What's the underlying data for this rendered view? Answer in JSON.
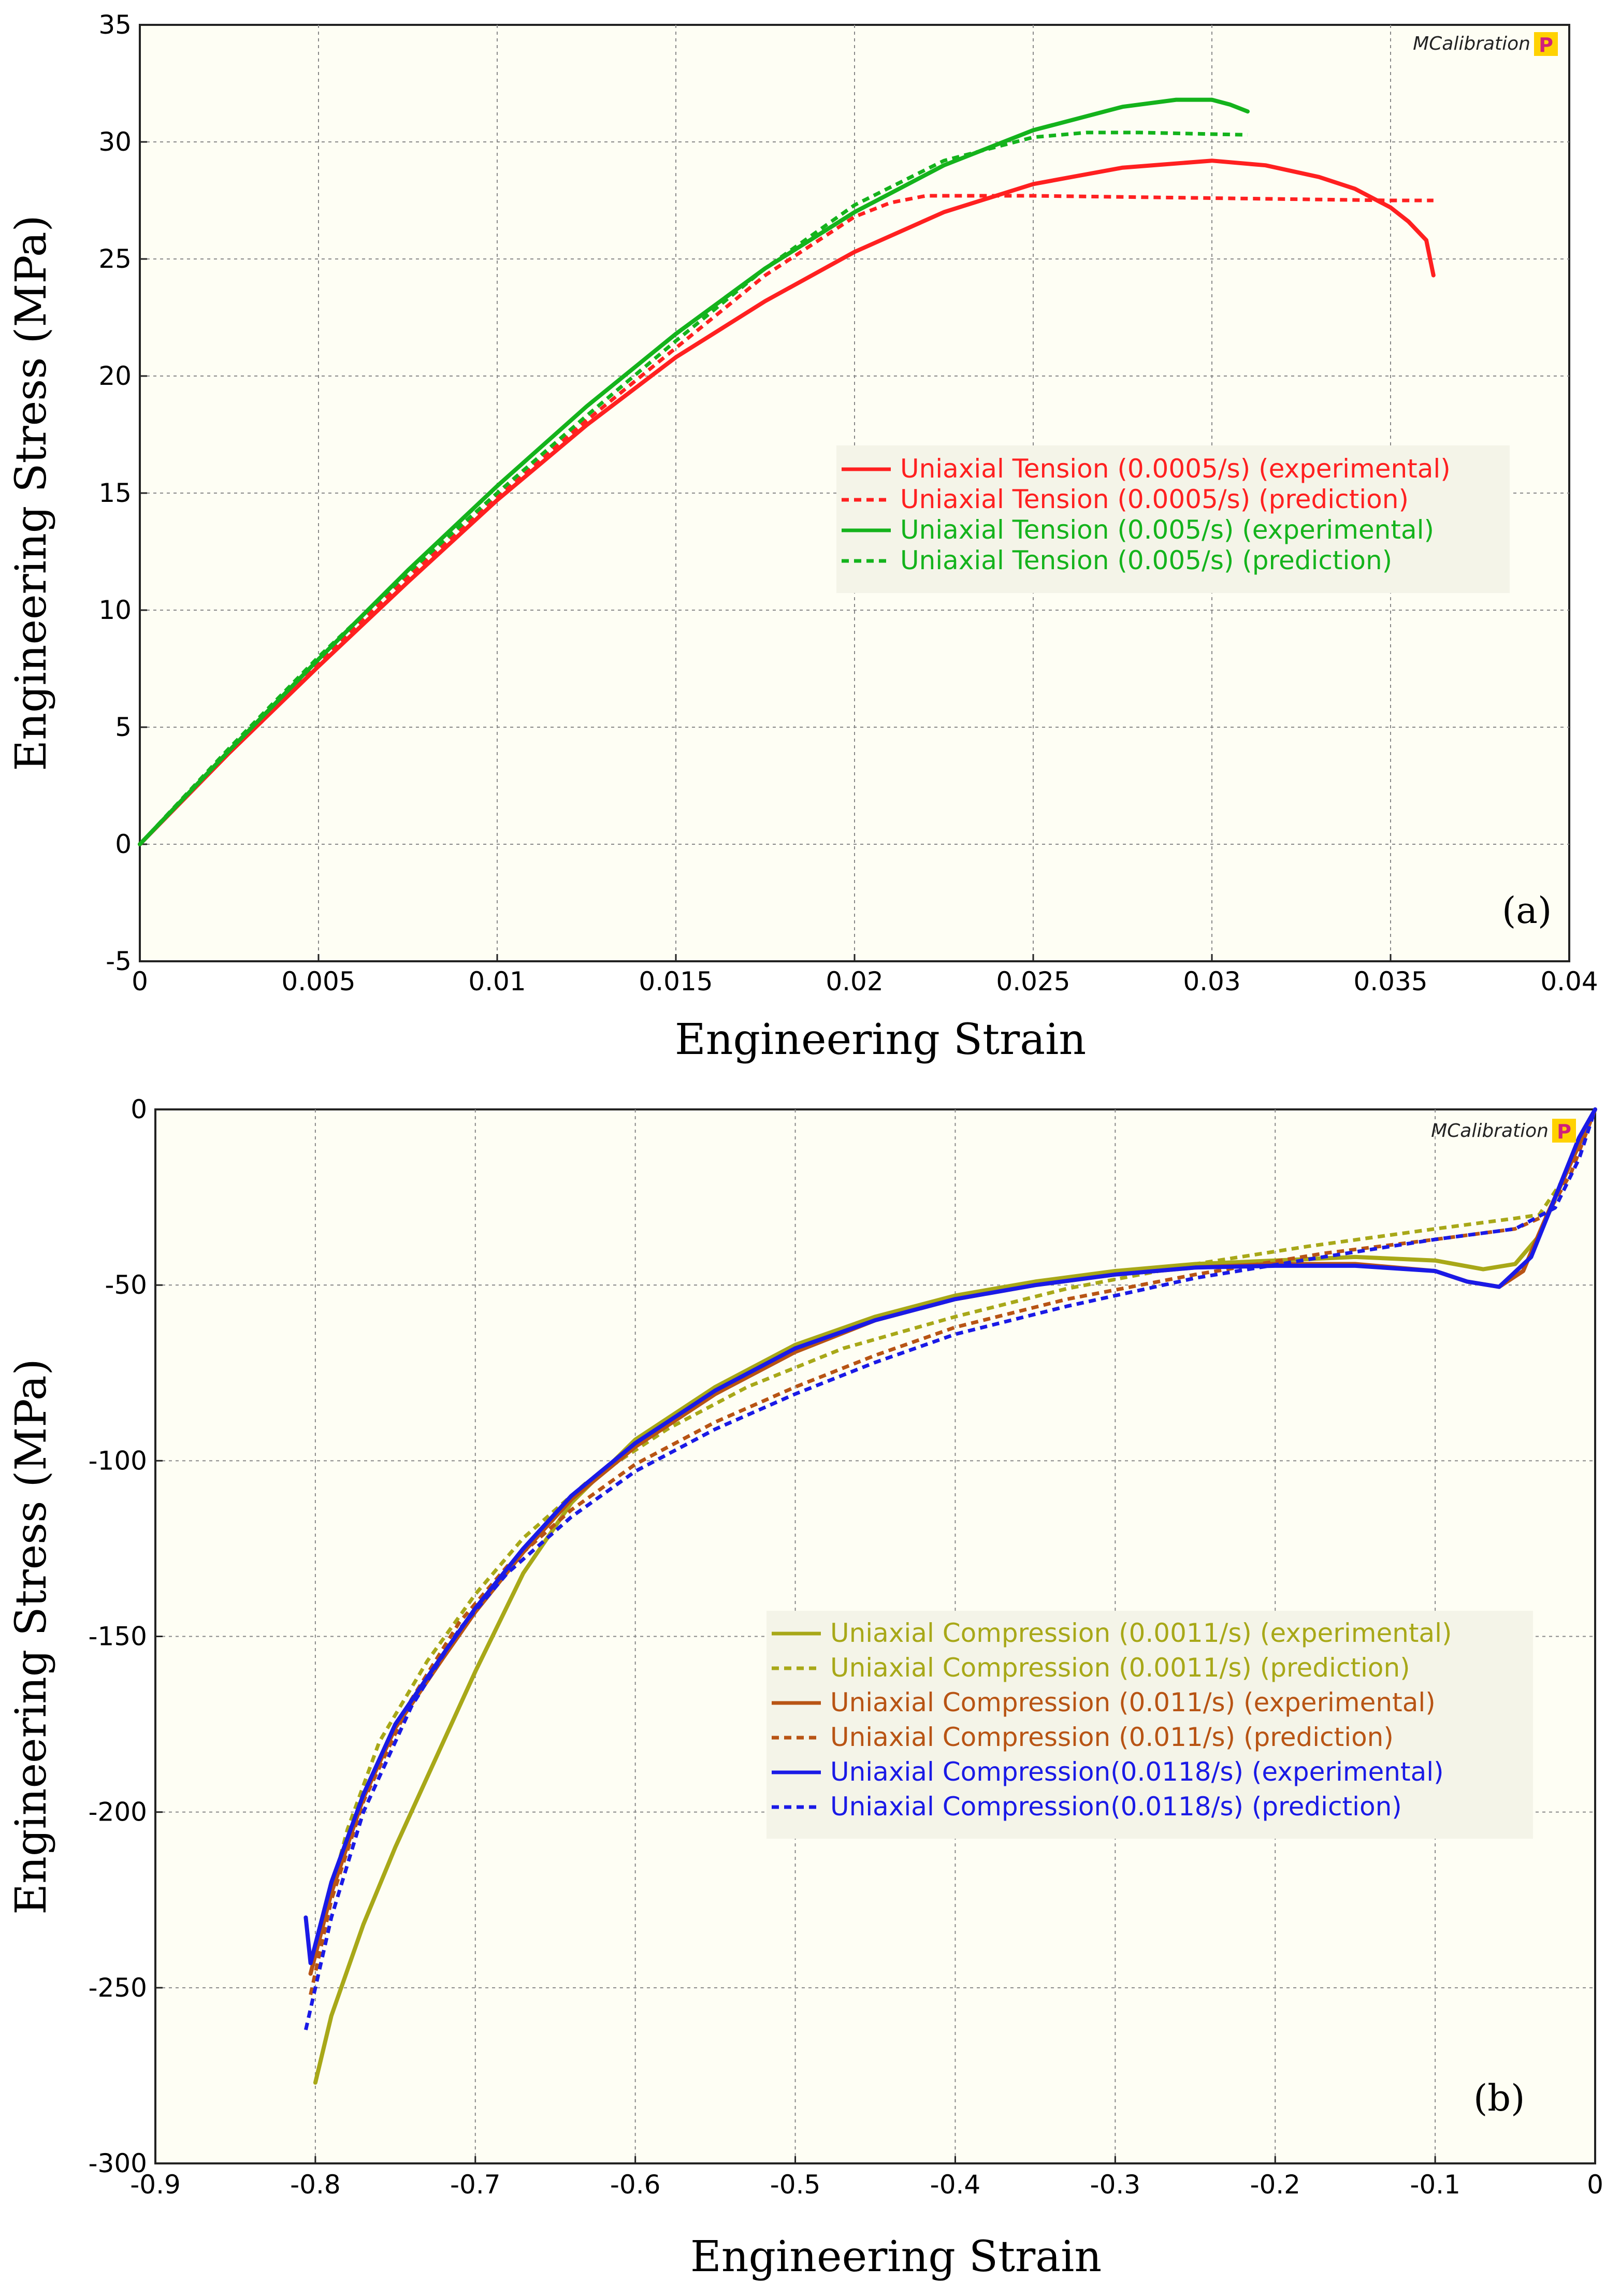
{
  "brand": {
    "name": "MCalibration",
    "badge": "P"
  },
  "chart_data": [
    {
      "type": "line",
      "panel_label": "(a)",
      "xlabel": "Engineering Strain",
      "ylabel": "Engineering Stress (MPa)",
      "xlim": [
        0,
        0.04
      ],
      "ylim": [
        -5,
        35
      ],
      "xticks": [
        0,
        0.005,
        0.01,
        0.015,
        0.02,
        0.025,
        0.03,
        0.035,
        0.04
      ],
      "xtick_labels": [
        "0",
        "0.005",
        "0.01",
        "0.015",
        "0.02",
        "0.025",
        "0.03",
        "0.035",
        "0.04"
      ],
      "yticks": [
        -5,
        0,
        5,
        10,
        15,
        20,
        25,
        30,
        35
      ],
      "ytick_labels": [
        "-5",
        "0",
        "5",
        "10",
        "15",
        "20",
        "25",
        "30",
        "35"
      ],
      "grid": true,
      "legend_position": "center-right",
      "series": [
        {
          "name": "Uniaxial Tension (0.0005/s) (experimental)",
          "color": "#ff2020",
          "style": "solid",
          "x": [
            0,
            0.0025,
            0.005,
            0.0075,
            0.01,
            0.0125,
            0.015,
            0.0175,
            0.02,
            0.0225,
            0.025,
            0.0275,
            0.03,
            0.0315,
            0.033,
            0.034,
            0.035,
            0.0355,
            0.036,
            0.0362
          ],
          "y": [
            0,
            3.9,
            7.6,
            11.2,
            14.7,
            17.9,
            20.8,
            23.2,
            25.3,
            27.0,
            28.2,
            28.9,
            29.2,
            29.0,
            28.5,
            28.0,
            27.2,
            26.6,
            25.8,
            24.3
          ]
        },
        {
          "name": "Uniaxial Tension (0.0005/s) (prediction)",
          "color": "#ff2020",
          "style": "dashed",
          "x": [
            0,
            0.0025,
            0.005,
            0.0075,
            0.01,
            0.0125,
            0.015,
            0.0175,
            0.02,
            0.021,
            0.022,
            0.025,
            0.03,
            0.035,
            0.0362
          ],
          "y": [
            0,
            4.0,
            7.8,
            11.4,
            14.8,
            18.1,
            21.2,
            24.3,
            26.8,
            27.4,
            27.7,
            27.7,
            27.6,
            27.5,
            27.5
          ]
        },
        {
          "name": "Uniaxial Tension (0.005/s) (experimental)",
          "color": "#14b31c",
          "style": "solid",
          "x": [
            0,
            0.0025,
            0.005,
            0.0075,
            0.01,
            0.0125,
            0.015,
            0.0175,
            0.02,
            0.0225,
            0.025,
            0.0275,
            0.029,
            0.03,
            0.0305,
            0.031
          ],
          "y": [
            0,
            4.0,
            7.9,
            11.7,
            15.3,
            18.7,
            21.8,
            24.6,
            27.0,
            29.0,
            30.5,
            31.5,
            31.8,
            31.8,
            31.6,
            31.3
          ]
        },
        {
          "name": "Uniaxial Tension (0.005/s) (prediction)",
          "color": "#14b31c",
          "style": "dashed",
          "x": [
            0,
            0.0025,
            0.005,
            0.0075,
            0.01,
            0.0125,
            0.015,
            0.0175,
            0.02,
            0.0225,
            0.025,
            0.0265,
            0.028,
            0.031
          ],
          "y": [
            0,
            4.1,
            8.0,
            11.6,
            15.0,
            18.3,
            21.5,
            24.6,
            27.3,
            29.2,
            30.2,
            30.4,
            30.4,
            30.3
          ]
        }
      ]
    },
    {
      "type": "line",
      "panel_label": "(b)",
      "xlabel": "Engineering Strain",
      "ylabel": "Engineering Stress (MPa)",
      "xlim": [
        -0.9,
        0
      ],
      "ylim": [
        -300,
        0
      ],
      "xticks": [
        -0.9,
        -0.8,
        -0.7,
        -0.6,
        -0.5,
        -0.4,
        -0.3,
        -0.2,
        -0.1,
        0
      ],
      "xtick_labels": [
        "-0.9",
        "-0.8",
        "-0.7",
        "-0.6",
        "-0.5",
        "-0.4",
        "-0.3",
        "-0.2",
        "-0.1",
        "0"
      ],
      "yticks": [
        -300,
        -250,
        -200,
        -150,
        -100,
        -50,
        0
      ],
      "ytick_labels": [
        "-300",
        "-250",
        "-200",
        "-150",
        "-100",
        "-50",
        "0"
      ],
      "grid": true,
      "legend_position": "center-right",
      "series": [
        {
          "name": "Uniaxial Compression (0.0011/s) (experimental)",
          "color": "#a8a818",
          "style": "solid",
          "x": [
            -0.8,
            -0.79,
            -0.77,
            -0.75,
            -0.73,
            -0.7,
            -0.67,
            -0.64,
            -0.6,
            -0.55,
            -0.5,
            -0.45,
            -0.4,
            -0.35,
            -0.3,
            -0.25,
            -0.2,
            -0.15,
            -0.1,
            -0.07,
            -0.05,
            -0.035,
            -0.02,
            0
          ],
          "y": [
            -277,
            -258,
            -232,
            -210,
            -190,
            -160,
            -132,
            -112,
            -94,
            -79,
            -67,
            -59,
            -53,
            -49,
            -46,
            -44,
            -43,
            -42,
            -43,
            -45.5,
            -44,
            -36,
            -20,
            0
          ]
        },
        {
          "name": "Uniaxial Compression (0.0011/s) (prediction)",
          "color": "#a8a818",
          "style": "dashed",
          "x": [
            -0.8,
            -0.78,
            -0.76,
            -0.73,
            -0.7,
            -0.67,
            -0.63,
            -0.58,
            -0.53,
            -0.47,
            -0.4,
            -0.33,
            -0.25,
            -0.18,
            -0.1,
            -0.05,
            -0.035,
            -0.02,
            0
          ],
          "y": [
            -240,
            -205,
            -180,
            -157,
            -138,
            -122,
            -106,
            -91,
            -79,
            -68,
            -59,
            -51,
            -44,
            -39,
            -34,
            -31,
            -30,
            -20,
            0
          ]
        },
        {
          "name": "Uniaxial Compression (0.011/s) (experimental)",
          "color": "#b85414",
          "style": "solid",
          "x": [
            -0.803,
            -0.79,
            -0.77,
            -0.75,
            -0.72,
            -0.7,
            -0.67,
            -0.64,
            -0.6,
            -0.55,
            -0.5,
            -0.45,
            -0.4,
            -0.35,
            -0.3,
            -0.25,
            -0.2,
            -0.15,
            -0.1,
            -0.08,
            -0.06,
            -0.045,
            -0.03,
            -0.01,
            0
          ],
          "y": [
            -246,
            -223,
            -196,
            -176,
            -156,
            -143,
            -126,
            -111,
            -96,
            -81,
            -69,
            -60,
            -54,
            -50,
            -47,
            -45,
            -44,
            -44,
            -46,
            -49,
            -50.5,
            -46,
            -30,
            -10,
            0
          ]
        },
        {
          "name": "Uniaxial Compression (0.011/s) (prediction)",
          "color": "#b85414",
          "style": "dashed",
          "x": [
            -0.803,
            -0.79,
            -0.77,
            -0.74,
            -0.71,
            -0.68,
            -0.64,
            -0.6,
            -0.55,
            -0.5,
            -0.45,
            -0.4,
            -0.33,
            -0.25,
            -0.17,
            -0.1,
            -0.05,
            -0.03,
            -0.015,
            0
          ],
          "y": [
            -252,
            -225,
            -197,
            -168,
            -146,
            -130,
            -114,
            -101,
            -89,
            -79,
            -70,
            -62,
            -54,
            -47,
            -41,
            -37,
            -34,
            -30,
            -18,
            0
          ]
        },
        {
          "name": "Uniaxial Compression(0.0118/s) (experimental)",
          "color": "#1a1ae6",
          "style": "solid",
          "x": [
            -0.806,
            -0.803,
            -0.79,
            -0.77,
            -0.75,
            -0.72,
            -0.7,
            -0.67,
            -0.64,
            -0.6,
            -0.55,
            -0.5,
            -0.45,
            -0.4,
            -0.35,
            -0.3,
            -0.25,
            -0.2,
            -0.15,
            -0.1,
            -0.08,
            -0.06,
            -0.04,
            -0.025,
            -0.01,
            0
          ],
          "y": [
            -230,
            -243,
            -220,
            -195,
            -175,
            -155,
            -142,
            -125,
            -110,
            -95,
            -80,
            -68,
            -60,
            -54,
            -50,
            -47,
            -45,
            -44.5,
            -44.5,
            -46,
            -49,
            -50.5,
            -42,
            -25,
            -8,
            0
          ]
        },
        {
          "name": "Uniaxial Compression(0.0118/s) (prediction)",
          "color": "#1a1ae6",
          "style": "dashed",
          "x": [
            -0.806,
            -0.79,
            -0.77,
            -0.74,
            -0.71,
            -0.68,
            -0.64,
            -0.6,
            -0.55,
            -0.5,
            -0.45,
            -0.4,
            -0.33,
            -0.25,
            -0.17,
            -0.1,
            -0.05,
            -0.025,
            -0.01,
            0
          ],
          "y": [
            -262,
            -230,
            -200,
            -170,
            -148,
            -132,
            -116,
            -103,
            -91,
            -81,
            -72,
            -64,
            -56,
            -48,
            -42,
            -37,
            -34,
            -28,
            -14,
            0
          ]
        }
      ]
    }
  ]
}
